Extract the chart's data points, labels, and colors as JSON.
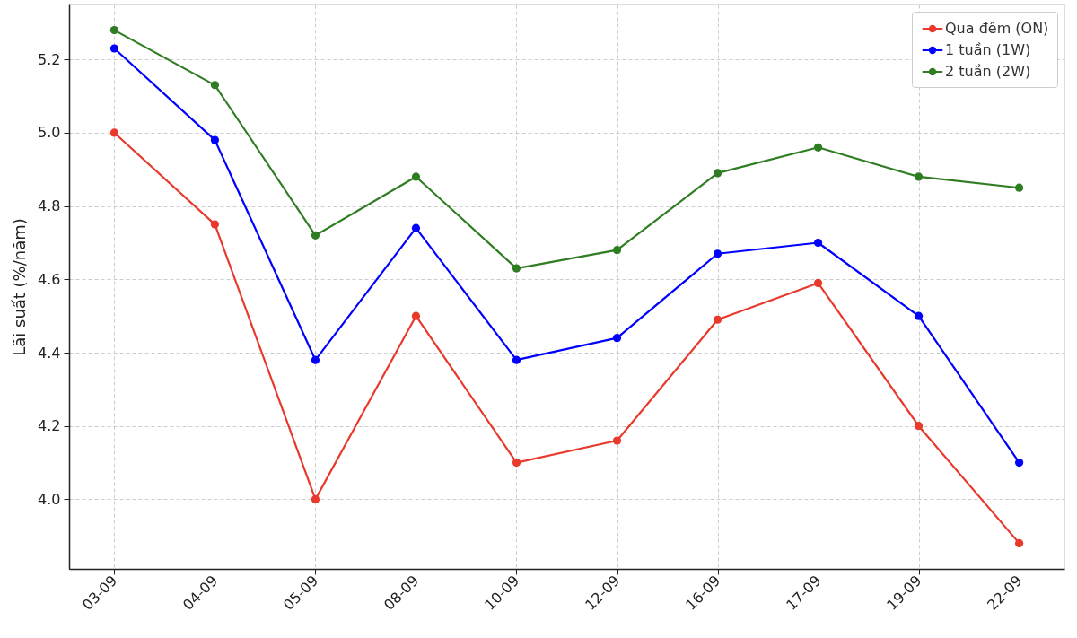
{
  "chart_data": {
    "type": "line",
    "ylabel": "Lãi suất (%/năm)",
    "categories": [
      "03-09",
      "04-09",
      "05-09",
      "08-09",
      "10-09",
      "12-09",
      "16-09",
      "17-09",
      "19-09",
      "22-09"
    ],
    "series": [
      {
        "name": "Qua đêm (ON)",
        "color": "#e8392c",
        "values": [
          5.0,
          4.75,
          4.0,
          4.5,
          4.1,
          4.16,
          4.49,
          4.59,
          4.2,
          3.88
        ]
      },
      {
        "name": "1 tuần (1W)",
        "color": "#0000ff",
        "values": [
          5.23,
          4.98,
          4.38,
          4.74,
          4.38,
          4.44,
          4.67,
          4.7,
          4.5,
          4.1
        ]
      },
      {
        "name": "2 tuần (2W)",
        "color": "#2f7d22",
        "values": [
          5.28,
          5.13,
          4.72,
          4.88,
          4.63,
          4.68,
          4.89,
          4.96,
          4.88,
          4.85
        ]
      }
    ],
    "ylim": [
      3.81,
      5.35
    ],
    "yticks": [
      {
        "value": 4,
        "label": "4.0"
      },
      4.2,
      4.4,
      4.6,
      4.8,
      {
        "value": 5,
        "label": "5.0"
      },
      5.2
    ],
    "grid": true,
    "legend": "top right",
    "marker": "circle",
    "line_style": "solid"
  }
}
